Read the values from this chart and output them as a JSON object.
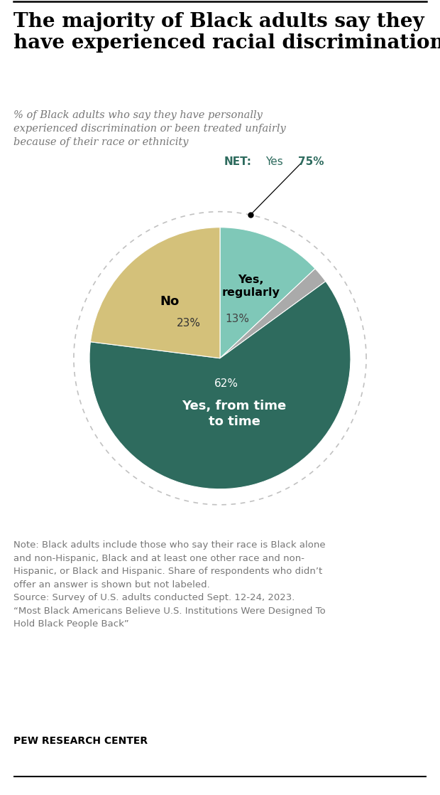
{
  "title": "The majority of Black adults say they\nhave experienced racial discrimination",
  "subtitle": "% of Black adults who say they have personally\nexperienced discrimination or been treated unfairly\nbecause of their race or ethnicity",
  "slices_order": [
    13,
    2,
    62,
    23
  ],
  "colors_order": [
    "#7FC8B8",
    "#AAAAAA",
    "#2E6B5E",
    "#D4C17A"
  ],
  "net_color": "#2E6B5E",
  "note": "Note: Black adults include those who say their race is Black alone\nand non-Hispanic, Black and at least one other race and non-\nHispanic, or Black and Hispanic. Share of respondents who didn’t\noffer an answer is shown but not labeled.\nSource: Survey of U.S. adults conducted Sept. 12-24, 2023.\n“Most Black Americans Believe U.S. Institutions Were Designed To\nHold Black People Back”",
  "source_bold": "PEW RESEARCH CENTER",
  "bg_color": "#FFFFFF"
}
